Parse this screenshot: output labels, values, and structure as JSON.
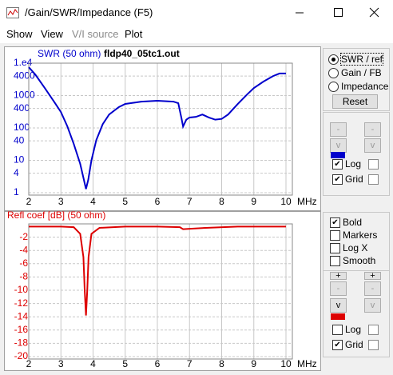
{
  "window": {
    "title": "/Gain/SWR/Impedance (F5)"
  },
  "menu": [
    {
      "label": "Show",
      "enabled": true
    },
    {
      "label": "View",
      "enabled": true
    },
    {
      "label": "V/I source",
      "enabled": false
    },
    {
      "label": "Plot",
      "enabled": true
    }
  ],
  "chart_data": [
    {
      "type": "line",
      "title": "SWR (50 ohm)",
      "subtitle": "fldp40_05tc1.out",
      "xlabel": "MHz",
      "color": "#0000cc",
      "log_y": true,
      "grid": true,
      "x": [
        2.0,
        2.2,
        2.5,
        2.8,
        3.0,
        3.2,
        3.4,
        3.6,
        3.7,
        3.78,
        3.85,
        3.95,
        4.1,
        4.3,
        4.5,
        4.8,
        5.0,
        5.5,
        6.0,
        6.5,
        6.65,
        6.75,
        6.8,
        6.9,
        7.0,
        7.2,
        7.4,
        7.6,
        7.8,
        8.0,
        8.2,
        8.5,
        8.8,
        9.0,
        9.3,
        9.6,
        9.8,
        10.0
      ],
      "values": [
        7500,
        4500,
        1700,
        620,
        310,
        112,
        32,
        7.8,
        2.9,
        1.3,
        2.5,
        10,
        42,
        130,
        260,
        440,
        550,
        650,
        690,
        650,
        580,
        200,
        110,
        180,
        210,
        220,
        260,
        210,
        180,
        190,
        260,
        550,
        1100,
        1700,
        2700,
        4000,
        4800,
        4800
      ],
      "xlim": [
        2,
        10
      ],
      "xticks": [
        2,
        3,
        4,
        5,
        6,
        7,
        8,
        9,
        10
      ],
      "ylim": [
        1,
        10000
      ],
      "yticks": [
        1,
        4,
        10,
        40,
        100,
        400,
        1000,
        4000,
        {
          "value": 10000,
          "label": "1.e4"
        }
      ]
    },
    {
      "type": "line",
      "title": "Refl coef [dB] (50 ohm)",
      "xlabel": "MHz",
      "color": "#dd0000",
      "log_y": false,
      "grid": true,
      "x": [
        2.0,
        3.0,
        3.4,
        3.6,
        3.7,
        3.74,
        3.78,
        3.82,
        3.86,
        3.95,
        4.2,
        5.0,
        6.0,
        6.7,
        6.8,
        7.5,
        8.5,
        10.0
      ],
      "values": [
        -0.4,
        -0.4,
        -0.5,
        -1.5,
        -5,
        -10,
        -13.8,
        -10,
        -5,
        -1.5,
        -0.6,
        -0.4,
        -0.4,
        -0.5,
        -0.8,
        -0.6,
        -0.4,
        -0.4
      ],
      "xlim": [
        2,
        10
      ],
      "xticks": [
        2,
        3,
        4,
        5,
        6,
        7,
        8,
        9,
        10
      ],
      "ylim": [
        -20,
        0
      ],
      "yticks": [
        -2,
        -4,
        -6,
        -8,
        -10,
        -12,
        -14,
        -16,
        -18,
        -20
      ]
    }
  ],
  "controls": {
    "plot_select": {
      "options": [
        "SWR / ref",
        "Gain / FB",
        "Impedance"
      ],
      "selected": 0
    },
    "reset": "Reset",
    "upper": {
      "buttons": [
        "-",
        "-",
        "v",
        "v"
      ],
      "log": "Log",
      "grid": "Grid"
    },
    "options": [
      {
        "label": "Bold",
        "checked": true
      },
      {
        "label": "Markers",
        "checked": false
      },
      {
        "label": "Log X",
        "checked": false
      },
      {
        "label": "Smooth",
        "checked": false
      }
    ],
    "lower": {
      "buttons": [
        "+",
        "+",
        "-",
        "-",
        "v",
        "v"
      ],
      "log": "Log",
      "grid": "Grid"
    }
  }
}
